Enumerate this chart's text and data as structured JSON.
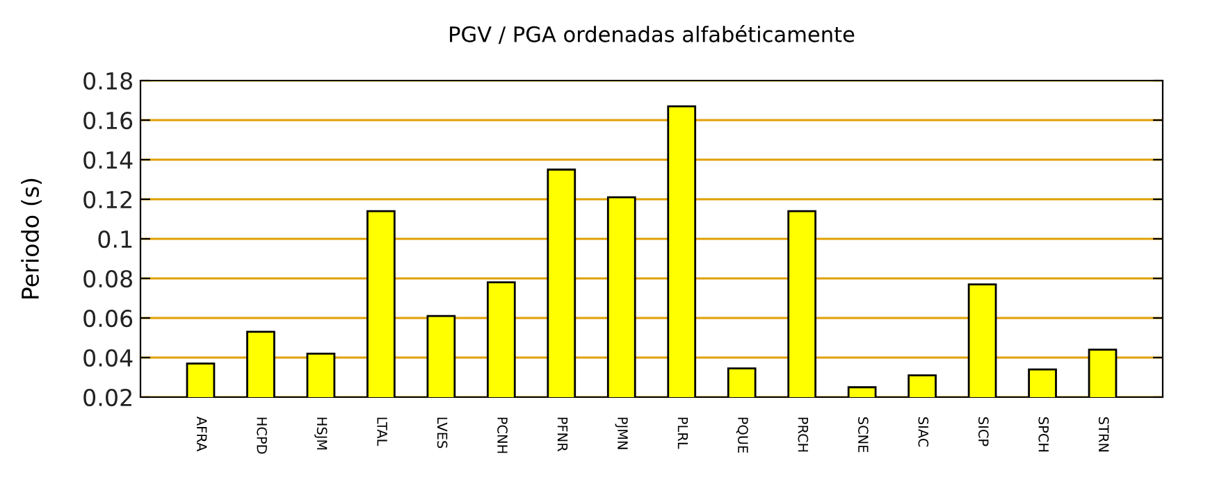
{
  "chart_data": {
    "type": "bar",
    "title": "PGV / PGA ordenadas alfabéticamente",
    "ylabel": "Periodo (s)",
    "categories": [
      "AFRA",
      "HCPD",
      "HSJM",
      "LTAL",
      "LVES",
      "PCNH",
      "PFNR",
      "PJMN",
      "PLRL",
      "PQUE",
      "PRCH",
      "SCNE",
      "SIAC",
      "SICP",
      "SPCH",
      "STRN"
    ],
    "values": [
      0.037,
      0.053,
      0.042,
      0.114,
      0.061,
      0.078,
      0.135,
      0.121,
      0.167,
      0.0345,
      0.114,
      0.025,
      0.031,
      0.077,
      0.034,
      0.044
    ],
    "color": "#ffff00",
    "ylim": [
      0.02,
      0.18
    ],
    "yticks": [
      0.02,
      0.04,
      0.06,
      0.08,
      0.1,
      0.12,
      0.14,
      0.16,
      0.18
    ],
    "grid": "y"
  }
}
